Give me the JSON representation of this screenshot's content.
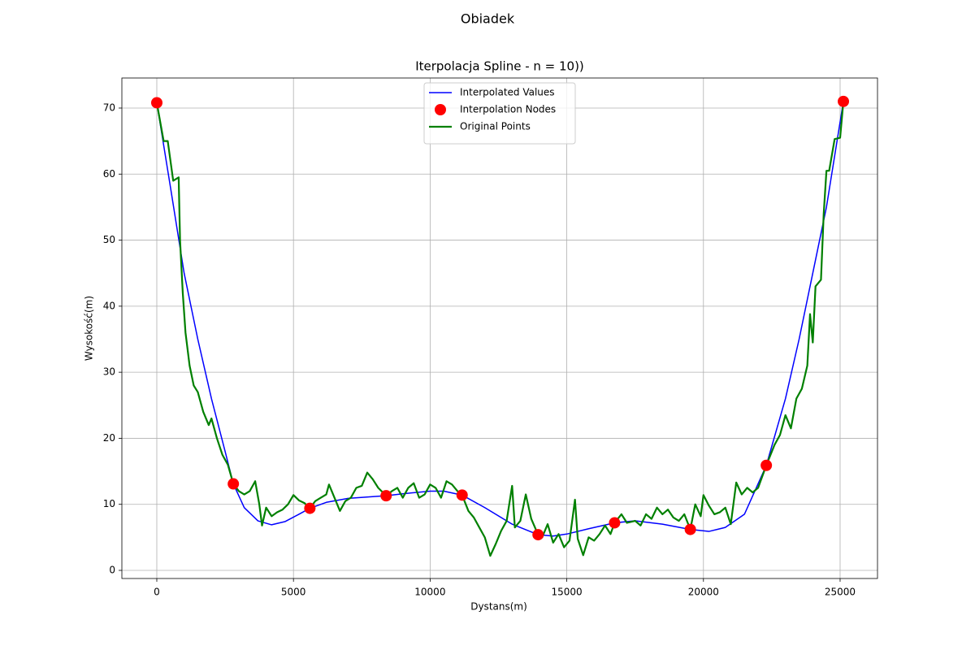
{
  "chart_data": {
    "type": "line",
    "suptitle": "Obiadek",
    "title": "Iterpolacja Spline - n = 10))",
    "xlabel": "Dystans(m)",
    "ylabel": "Wysokość(m)",
    "xlim": [
      -1278,
      26368
    ],
    "ylim": [
      -1.23,
      74.55
    ],
    "xticks": [
      0,
      5000,
      10000,
      15000,
      20000,
      25000
    ],
    "yticks": [
      0,
      10,
      20,
      30,
      40,
      50,
      60,
      70
    ],
    "grid": true,
    "legend": "upper center",
    "series": [
      {
        "name": "Interpolated Values",
        "type": "line",
        "color": "#0000ff",
        "x": [
          0,
          500,
          1000,
          1500,
          2000,
          2500,
          2800,
          3200,
          3700,
          4200,
          4700,
          5200,
          5600,
          6200,
          7000,
          8000,
          8390,
          9000,
          10000,
          10500,
          11170,
          12000,
          13000,
          13950,
          14500,
          15000,
          15800,
          16750,
          17500,
          18500,
          19520,
          20200,
          20800,
          21500,
          22300,
          23000,
          23500,
          24000,
          24500,
          25120
        ],
        "values": [
          70.8,
          58,
          45,
          35,
          26,
          18,
          13.1,
          9.5,
          7.5,
          6.9,
          7.4,
          8.5,
          9.4,
          10.3,
          10.9,
          11.2,
          11.3,
          11.6,
          12.0,
          12.0,
          11.4,
          9.5,
          7.0,
          5.4,
          5.2,
          5.5,
          6.3,
          7.2,
          7.5,
          7.0,
          6.2,
          5.9,
          6.5,
          8.5,
          15.9,
          26,
          35,
          45,
          55,
          71.0
        ]
      },
      {
        "name": "Interpolation Nodes",
        "type": "scatter",
        "color": "#ff0000",
        "x": [
          0,
          2800,
          5600,
          8390,
          11170,
          13950,
          16750,
          19520,
          22300,
          25120
        ],
        "values": [
          70.8,
          13.1,
          9.4,
          11.3,
          11.4,
          5.4,
          7.2,
          6.2,
          15.9,
          71.0
        ]
      },
      {
        "name": "Original Points",
        "type": "line",
        "color": "#008000",
        "x": [
          0,
          250,
          400,
          600,
          800,
          850,
          950,
          1050,
          1200,
          1350,
          1500,
          1700,
          1900,
          2000,
          2200,
          2400,
          2600,
          2800,
          3000,
          3200,
          3400,
          3600,
          3750,
          3850,
          4000,
          4200,
          4400,
          4600,
          4800,
          5000,
          5200,
          5400,
          5600,
          5800,
          6000,
          6200,
          6300,
          6500,
          6700,
          6900,
          7100,
          7300,
          7500,
          7700,
          7900,
          8100,
          8390,
          8600,
          8800,
          9000,
          9200,
          9400,
          9600,
          9800,
          10000,
          10200,
          10400,
          10600,
          10800,
          11000,
          11170,
          11400,
          11600,
          11800,
          12000,
          12200,
          12400,
          12600,
          12800,
          13000,
          13100,
          13300,
          13500,
          13700,
          13950,
          14100,
          14300,
          14500,
          14700,
          14900,
          15100,
          15300,
          15400,
          15600,
          15800,
          16000,
          16200,
          16400,
          16600,
          16750,
          17000,
          17200,
          17500,
          17700,
          17900,
          18100,
          18300,
          18500,
          18700,
          18900,
          19100,
          19300,
          19520,
          19700,
          19900,
          20000,
          20200,
          20400,
          20600,
          20800,
          21000,
          21200,
          21400,
          21600,
          21800,
          22000,
          22300,
          22600,
          22800,
          23000,
          23200,
          23400,
          23600,
          23800,
          23900,
          24000,
          24100,
          24300,
          24400,
          24500,
          24600,
          24800,
          25000,
          25120
        ],
        "values": [
          70.8,
          65,
          65,
          59,
          59.5,
          50,
          42,
          36,
          31,
          28,
          27,
          24,
          22,
          23,
          20,
          17.5,
          16,
          13.1,
          12,
          11.5,
          12,
          13.5,
          10,
          6.8,
          9.5,
          8.2,
          8.8,
          9.2,
          10,
          11.4,
          10.6,
          10.2,
          9.4,
          10.5,
          11,
          11.5,
          13,
          11,
          9,
          10.5,
          11,
          12.5,
          12.8,
          14.8,
          13.8,
          12.5,
          11.3,
          12,
          12.5,
          11,
          12.5,
          13.2,
          11,
          11.5,
          13,
          12.5,
          11,
          13.5,
          13,
          12,
          11.4,
          9,
          8,
          6.5,
          5,
          2.2,
          4,
          6,
          7.5,
          12.8,
          6.5,
          7.5,
          11.5,
          7.8,
          5.4,
          5,
          7,
          4.2,
          5.5,
          3.5,
          4.5,
          10.7,
          4.8,
          2.3,
          5,
          4.5,
          5.5,
          6.8,
          5.5,
          7.2,
          8.5,
          7.2,
          7.5,
          6.8,
          8.5,
          7.8,
          9.5,
          8.5,
          9.2,
          8,
          7.5,
          8.5,
          6.2,
          10,
          8.2,
          11.4,
          9.8,
          8.5,
          8.8,
          9.5,
          7,
          13.3,
          11.5,
          12.5,
          11.8,
          12.5,
          15.9,
          19,
          20.5,
          23.5,
          21.5,
          26,
          27.5,
          31,
          38.8,
          34.5,
          43,
          44,
          54,
          60.5,
          60.5,
          65.3,
          65.5,
          71.0
        ]
      }
    ]
  }
}
